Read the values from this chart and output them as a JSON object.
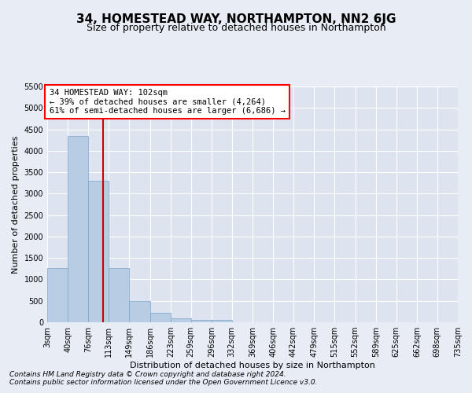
{
  "title": "34, HOMESTEAD WAY, NORTHAMPTON, NN2 6JG",
  "subtitle": "Size of property relative to detached houses in Northampton",
  "xlabel": "Distribution of detached houses by size in Northampton",
  "ylabel": "Number of detached properties",
  "footnote1": "Contains HM Land Registry data © Crown copyright and database right 2024.",
  "footnote2": "Contains public sector information licensed under the Open Government Licence v3.0.",
  "annotation_title": "34 HOMESTEAD WAY: 102sqm",
  "annotation_line1": "← 39% of detached houses are smaller (4,264)",
  "annotation_line2": "61% of semi-detached houses are larger (6,686) →",
  "property_size": 102,
  "bin_edges": [
    3,
    40,
    76,
    113,
    149,
    186,
    223,
    259,
    296,
    332,
    369,
    406,
    442,
    479,
    515,
    552,
    589,
    625,
    662,
    698,
    735
  ],
  "bar_heights": [
    1260,
    4350,
    3300,
    1260,
    490,
    215,
    90,
    60,
    55,
    0,
    0,
    0,
    0,
    0,
    0,
    0,
    0,
    0,
    0,
    0
  ],
  "bar_color": "#b8cce4",
  "bar_edge_color": "#7aa3c8",
  "vline_color": "#cc0000",
  "vline_x": 102,
  "ylim": [
    0,
    5500
  ],
  "yticks": [
    0,
    500,
    1000,
    1500,
    2000,
    2500,
    3000,
    3500,
    4000,
    4500,
    5000,
    5500
  ],
  "bg_color": "#e8ecf5",
  "plot_bg_color": "#dde4f0",
  "grid_color": "#ffffff",
  "title_fontsize": 11,
  "subtitle_fontsize": 9,
  "axis_label_fontsize": 8,
  "tick_fontsize": 7,
  "annotation_fontsize": 7.5,
  "footnote_fontsize": 6.5
}
